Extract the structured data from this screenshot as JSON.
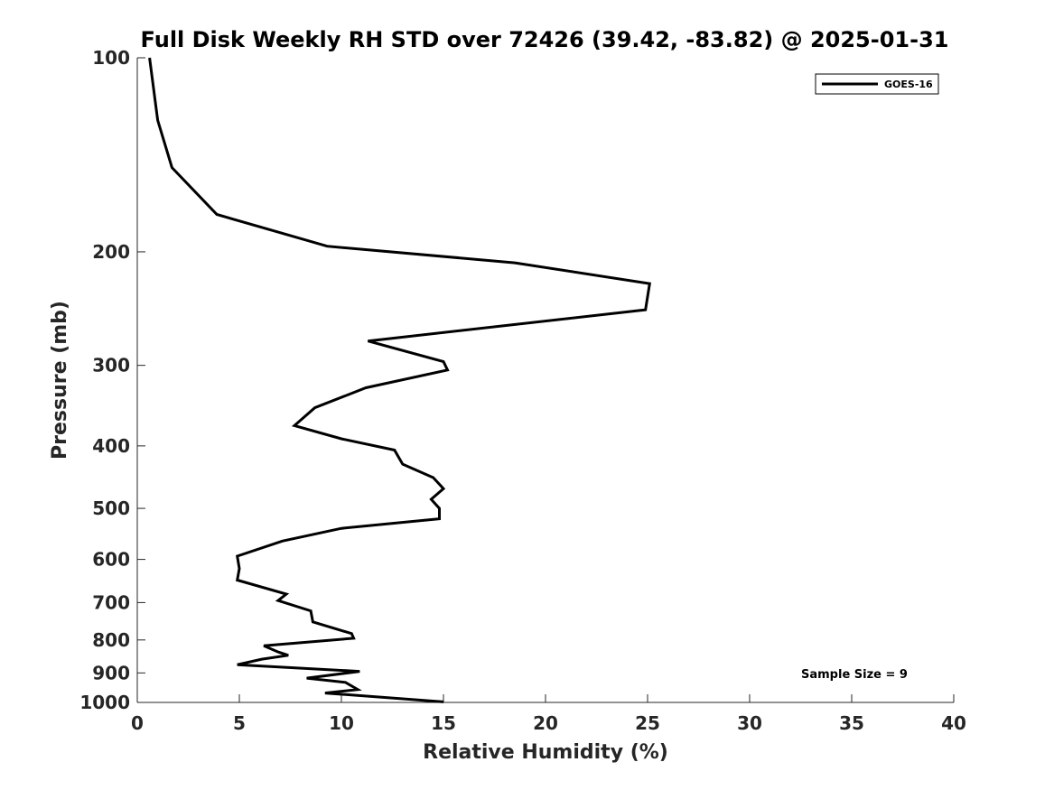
{
  "chart_data": {
    "type": "line",
    "title": "Full Disk Weekly RH STD over 72426 (39.42, -83.82) @ 2025-01-31",
    "xlabel": "Relative Humidity (%)",
    "ylabel": "Pressure (mb)",
    "xlim": [
      0,
      40
    ],
    "ylim": [
      100,
      1000
    ],
    "y_scale": "log",
    "y_reversed": true,
    "x_ticks": [
      0,
      5,
      10,
      15,
      20,
      25,
      30,
      35,
      40
    ],
    "y_ticks": [
      100,
      200,
      300,
      400,
      500,
      600,
      700,
      800,
      900,
      1000
    ],
    "grid": false,
    "legend_position": "top-right",
    "series": [
      {
        "name": "GOES-16",
        "color": "#000000",
        "points": [
          [
            0.6,
            100
          ],
          [
            1.0,
            125
          ],
          [
            1.7,
            148
          ],
          [
            3.9,
            175
          ],
          [
            9.3,
            196
          ],
          [
            18.5,
            208
          ],
          [
            25.1,
            224
          ],
          [
            24.9,
            246
          ],
          [
            11.3,
            275
          ],
          [
            15.0,
            296
          ],
          [
            15.2,
            305
          ],
          [
            11.2,
            325
          ],
          [
            8.7,
            349
          ],
          [
            7.7,
            372
          ],
          [
            10.0,
            390
          ],
          [
            12.6,
            406
          ],
          [
            13.0,
            427
          ],
          [
            14.5,
            448
          ],
          [
            15.0,
            466
          ],
          [
            14.4,
            484
          ],
          [
            14.8,
            500
          ],
          [
            14.8,
            519
          ],
          [
            10.0,
            537
          ],
          [
            7.1,
            562
          ],
          [
            4.9,
            593
          ],
          [
            5.0,
            620
          ],
          [
            4.9,
            646
          ],
          [
            7.3,
            679
          ],
          [
            6.9,
            695
          ],
          [
            8.5,
            721
          ],
          [
            8.6,
            750
          ],
          [
            10.5,
            782
          ],
          [
            10.6,
            795
          ],
          [
            6.2,
            817
          ],
          [
            6.9,
            835
          ],
          [
            7.4,
            845
          ],
          [
            6.1,
            857
          ],
          [
            4.9,
            874
          ],
          [
            10.9,
            895
          ],
          [
            8.3,
            917
          ],
          [
            10.2,
            931
          ],
          [
            10.8,
            955
          ],
          [
            9.2,
            967
          ],
          [
            15.0,
            998
          ]
        ]
      }
    ],
    "annotations": [
      "Sample Size = 9"
    ]
  }
}
